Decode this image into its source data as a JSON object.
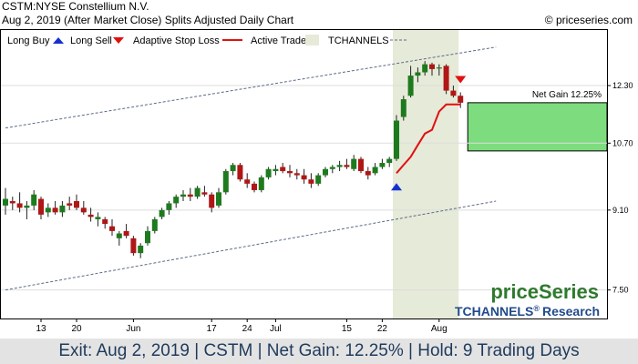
{
  "header": {
    "line1": "CSTM:NYSE Constellium N.V.",
    "line2": "Aug 2, 2019 (After Market Close)  Splits Adjusted Daily Chart",
    "copyright": "© priceseries.com"
  },
  "legend": {
    "long_buy": "Long Buy",
    "long_sell": "Long Sell",
    "stop": "Adaptive Stop Loss",
    "active": "Active Trade",
    "channels": "TCHANNELS"
  },
  "brand": {
    "name": "priceSeries",
    "sub": "TCHANNELS",
    "reg": "®",
    "research": "Research"
  },
  "footer": {
    "text": "Exit: Aug 2, 2019 | CSTM | Net Gain: 12.25% | Hold: 9 Trading Days"
  },
  "colors": {
    "up": "#1e7a1e",
    "down": "#b01616",
    "stop": "#e01010",
    "active_fill": "#e6ead8",
    "gain_fill": "#7ddc7d",
    "channel": "#5a6b85",
    "buy_arrow": "#1530d0",
    "sell_arrow": "#e01010",
    "brand_green": "#2f7a2f",
    "brand_blue": "#1f4a8a"
  },
  "chart_data": {
    "type": "candlestick",
    "y_scale": "log",
    "ylim": [
      7.0,
      14.1
    ],
    "y_ticks": [
      {
        "label": "12.30",
        "value": 12.3
      },
      {
        "label": "10.70",
        "value": 10.7
      },
      {
        "label": "9.10",
        "value": 9.1
      },
      {
        "label": "7.50",
        "value": 7.5
      }
    ],
    "x_ticks": [
      {
        "label": "13",
        "index": 5
      },
      {
        "label": "20",
        "index": 10
      },
      {
        "label": "Jun",
        "index": 18
      },
      {
        "label": "17",
        "index": 29
      },
      {
        "label": "24",
        "index": 34
      },
      {
        "label": "Jul",
        "index": 38
      },
      {
        "label": "15",
        "index": 48
      },
      {
        "label": "22",
        "index": 53
      },
      {
        "label": "Aug",
        "index": 61
      }
    ],
    "candles": [
      {
        "o": 9.2,
        "h": 9.6,
        "l": 9.0,
        "c": 9.35
      },
      {
        "o": 9.3,
        "h": 9.4,
        "l": 9.1,
        "c": 9.25
      },
      {
        "o": 9.25,
        "h": 9.5,
        "l": 9.05,
        "c": 9.15
      },
      {
        "o": 9.15,
        "h": 9.3,
        "l": 8.9,
        "c": 9.2
      },
      {
        "o": 9.2,
        "h": 9.55,
        "l": 9.1,
        "c": 9.45
      },
      {
        "o": 9.35,
        "h": 9.4,
        "l": 8.9,
        "c": 9.0
      },
      {
        "o": 9.05,
        "h": 9.25,
        "l": 8.95,
        "c": 9.15
      },
      {
        "o": 9.15,
        "h": 9.3,
        "l": 9.0,
        "c": 9.05
      },
      {
        "o": 9.05,
        "h": 9.3,
        "l": 8.95,
        "c": 9.2
      },
      {
        "o": 9.25,
        "h": 9.4,
        "l": 9.1,
        "c": 9.2
      },
      {
        "o": 9.3,
        "h": 9.45,
        "l": 9.1,
        "c": 9.15
      },
      {
        "o": 9.15,
        "h": 9.3,
        "l": 9.0,
        "c": 9.05
      },
      {
        "o": 9.0,
        "h": 9.15,
        "l": 8.85,
        "c": 8.95
      },
      {
        "o": 8.9,
        "h": 9.05,
        "l": 8.75,
        "c": 8.95
      },
      {
        "o": 8.9,
        "h": 8.95,
        "l": 8.7,
        "c": 8.8
      },
      {
        "o": 8.75,
        "h": 8.9,
        "l": 8.55,
        "c": 8.65
      },
      {
        "o": 8.5,
        "h": 8.65,
        "l": 8.35,
        "c": 8.6
      },
      {
        "o": 8.65,
        "h": 8.8,
        "l": 8.5,
        "c": 8.55
      },
      {
        "o": 8.5,
        "h": 8.55,
        "l": 8.15,
        "c": 8.2
      },
      {
        "o": 8.2,
        "h": 8.4,
        "l": 8.1,
        "c": 8.35
      },
      {
        "o": 8.4,
        "h": 8.75,
        "l": 8.35,
        "c": 8.65
      },
      {
        "o": 8.65,
        "h": 8.95,
        "l": 8.6,
        "c": 8.9
      },
      {
        "o": 8.95,
        "h": 9.15,
        "l": 8.9,
        "c": 9.1
      },
      {
        "o": 9.1,
        "h": 9.3,
        "l": 9.0,
        "c": 9.25
      },
      {
        "o": 9.25,
        "h": 9.45,
        "l": 9.15,
        "c": 9.4
      },
      {
        "o": 9.4,
        "h": 9.55,
        "l": 9.3,
        "c": 9.45
      },
      {
        "o": 9.45,
        "h": 9.6,
        "l": 9.3,
        "c": 9.4
      },
      {
        "o": 9.4,
        "h": 9.65,
        "l": 9.35,
        "c": 9.6
      },
      {
        "o": 9.5,
        "h": 9.65,
        "l": 9.4,
        "c": 9.45
      },
      {
        "o": 9.45,
        "h": 9.5,
        "l": 9.05,
        "c": 9.15
      },
      {
        "o": 9.2,
        "h": 9.6,
        "l": 9.15,
        "c": 9.5
      },
      {
        "o": 9.5,
        "h": 10.05,
        "l": 9.45,
        "c": 10.0
      },
      {
        "o": 10.0,
        "h": 10.2,
        "l": 9.9,
        "c": 10.15
      },
      {
        "o": 10.15,
        "h": 10.2,
        "l": 9.75,
        "c": 9.8
      },
      {
        "o": 9.8,
        "h": 9.95,
        "l": 9.6,
        "c": 9.7
      },
      {
        "o": 9.7,
        "h": 9.75,
        "l": 9.5,
        "c": 9.55
      },
      {
        "o": 9.55,
        "h": 9.9,
        "l": 9.5,
        "c": 9.85
      },
      {
        "o": 9.85,
        "h": 10.1,
        "l": 9.8,
        "c": 10.05
      },
      {
        "o": 10.0,
        "h": 10.15,
        "l": 9.9,
        "c": 10.05
      },
      {
        "o": 10.1,
        "h": 10.2,
        "l": 9.95,
        "c": 10.0
      },
      {
        "o": 10.0,
        "h": 10.15,
        "l": 9.85,
        "c": 9.95
      },
      {
        "o": 9.95,
        "h": 10.05,
        "l": 9.8,
        "c": 9.9
      },
      {
        "o": 9.9,
        "h": 10.05,
        "l": 9.7,
        "c": 9.8
      },
      {
        "o": 9.8,
        "h": 9.95,
        "l": 9.6,
        "c": 9.7
      },
      {
        "o": 9.7,
        "h": 9.95,
        "l": 9.65,
        "c": 9.9
      },
      {
        "o": 9.9,
        "h": 10.1,
        "l": 9.85,
        "c": 10.05
      },
      {
        "o": 10.05,
        "h": 10.15,
        "l": 9.95,
        "c": 10.1
      },
      {
        "o": 10.1,
        "h": 10.25,
        "l": 10.0,
        "c": 10.15
      },
      {
        "o": 10.15,
        "h": 10.3,
        "l": 10.05,
        "c": 10.1
      },
      {
        "o": 10.05,
        "h": 10.4,
        "l": 10.0,
        "c": 10.3
      },
      {
        "o": 10.3,
        "h": 10.35,
        "l": 9.95,
        "c": 10.0
      },
      {
        "o": 10.0,
        "h": 10.1,
        "l": 9.8,
        "c": 9.9
      },
      {
        "o": 9.95,
        "h": 10.2,
        "l": 9.9,
        "c": 10.1
      },
      {
        "o": 10.1,
        "h": 10.3,
        "l": 10.05,
        "c": 10.2
      },
      {
        "o": 10.2,
        "h": 10.35,
        "l": 10.1,
        "c": 10.3
      },
      {
        "o": 10.3,
        "h": 11.45,
        "l": 10.25,
        "c": 11.3
      },
      {
        "o": 11.4,
        "h": 12.0,
        "l": 11.3,
        "c": 11.9
      },
      {
        "o": 12.0,
        "h": 12.9,
        "l": 11.95,
        "c": 12.6
      },
      {
        "o": 12.6,
        "h": 12.85,
        "l": 12.4,
        "c": 12.7
      },
      {
        "o": 12.7,
        "h": 13.05,
        "l": 12.6,
        "c": 12.95
      },
      {
        "o": 12.95,
        "h": 13.0,
        "l": 12.6,
        "c": 12.8
      },
      {
        "o": 12.85,
        "h": 12.95,
        "l": 12.6,
        "c": 12.85
      },
      {
        "o": 12.9,
        "h": 12.95,
        "l": 12.05,
        "c": 12.15
      },
      {
        "o": 12.15,
        "h": 12.3,
        "l": 11.95,
        "c": 12.0
      },
      {
        "o": 12.0,
        "h": 12.1,
        "l": 11.65,
        "c": 11.8
      }
    ],
    "adaptive_stop": [
      {
        "index": 55,
        "value": 9.95
      },
      {
        "index": 56,
        "value": 10.15
      },
      {
        "index": 57,
        "value": 10.35
      },
      {
        "index": 58,
        "value": 10.65
      },
      {
        "index": 59,
        "value": 10.95
      },
      {
        "index": 60,
        "value": 11.05
      },
      {
        "index": 61,
        "value": 11.55
      },
      {
        "index": 62,
        "value": 11.75
      },
      {
        "index": 63,
        "value": 11.75
      },
      {
        "index": 64,
        "value": 11.75
      }
    ],
    "channel_upper": [
      {
        "index": 0,
        "value": 11.1
      },
      {
        "index": 69,
        "value": 13.5
      }
    ],
    "channel_lower": [
      {
        "index": 0,
        "value": 7.5
      },
      {
        "index": 69,
        "value": 9.3
      }
    ],
    "active_trade": {
      "start_index": 55,
      "end_index": 64,
      "top": 14.1
    },
    "buy_signal": {
      "index": 55,
      "value": 9.65
    },
    "sell_signal": {
      "index": 64,
      "value": 12.45
    },
    "net_gain": {
      "label": "Net Gain 12.25%",
      "entry": 10.5,
      "exit": 11.8
    }
  }
}
